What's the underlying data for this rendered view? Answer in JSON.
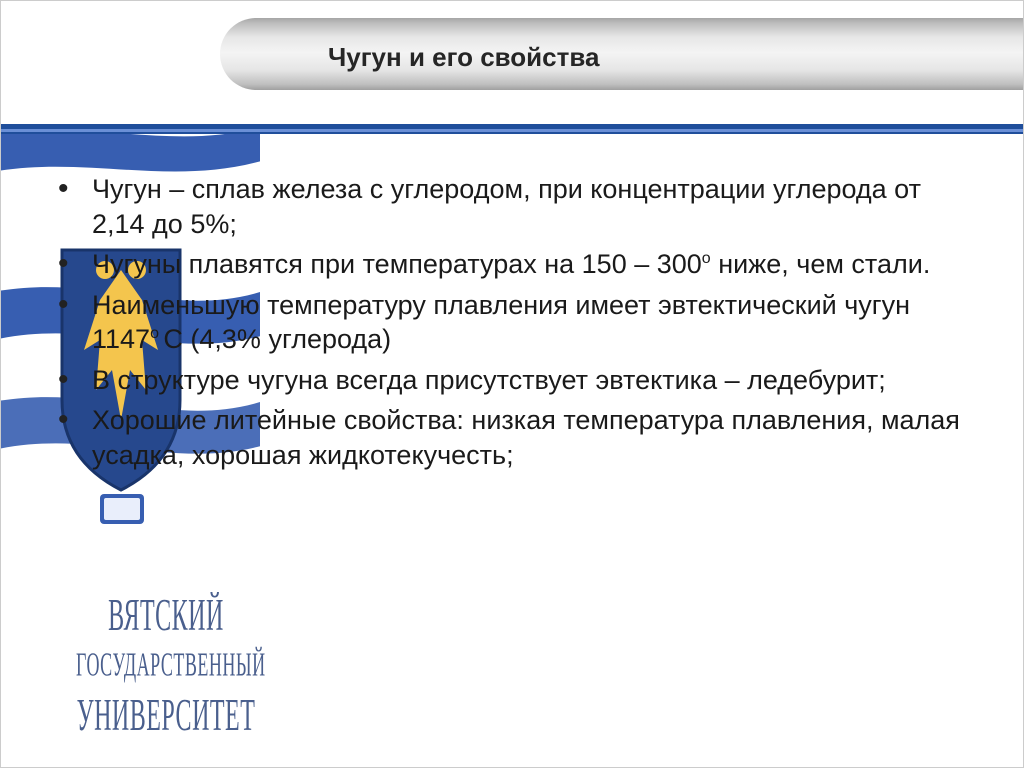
{
  "header": {
    "title": "Чугун и его свойства"
  },
  "bullets": [
    "Чугун – сплав железа с углеродом, при концентрации углерода от 2,14 до 5%;",
    "Чугуны плавятся при температурах на 150 – 300__SUP__о__/SUP__ ниже, чем стали.",
    "Наименьшую температуру плавления имеет эвтектический чугун 1147__SUP__о __/SUP__С (4,3% углерода)",
    "В структуре чугуна всегда присутствует эвтектика – ледебурит;",
    "Хорошие литейные свойства: низкая температура плавления, малая усадка, хорошая жидкотекучесть;"
  ],
  "university": {
    "line1": "ВЯТСКИЙ",
    "line2": "ГОСУДАРСТВЕННЫЙ",
    "line3": "УНИВЕРСИТЕТ"
  },
  "colors": {
    "blue_dark": "#1f4e9b",
    "blue_light": "#6a8fd6",
    "crest_gold": "#f4c244",
    "crest_blue": "#1b3f87",
    "uni_text": "#4a5f8d"
  },
  "layout": {
    "slide_w": 1024,
    "slide_h": 768,
    "content_fontsize": 27
  }
}
